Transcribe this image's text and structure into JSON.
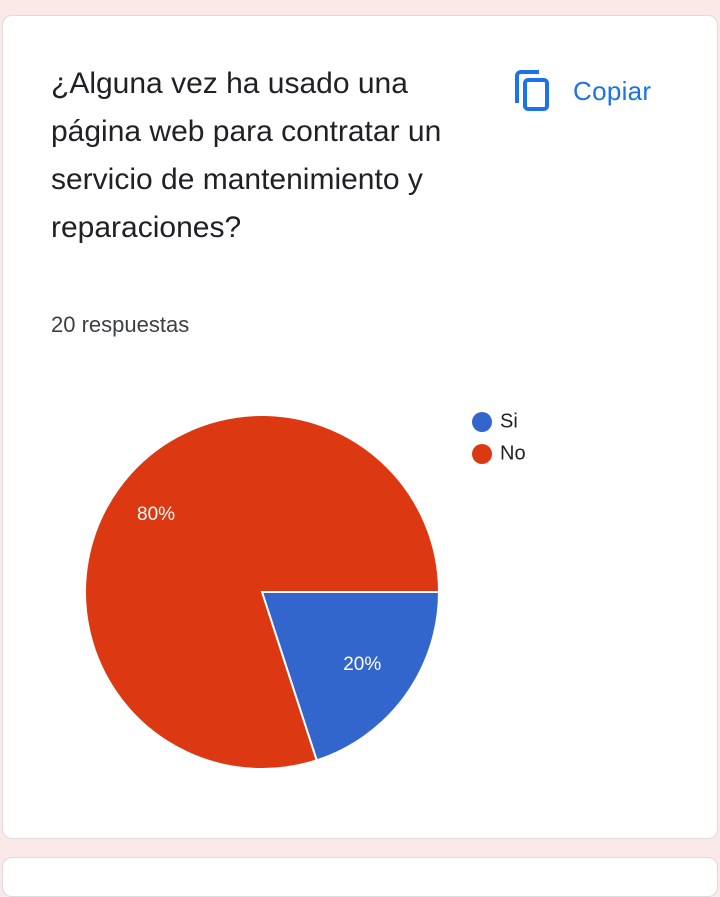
{
  "question": {
    "title": "¿Alguna vez ha usado una página web para contratar un servicio de mantenimiento y reparaciones?",
    "response_count": "20 respuestas",
    "copy_label": "Copiar"
  },
  "colors": {
    "accent": "#1a73e8",
    "si": "#3366cc",
    "no": "#dc3912",
    "background": "#fbe9e7"
  },
  "chart_data": {
    "type": "pie",
    "categories": [
      "Si",
      "No"
    ],
    "values": [
      20,
      80
    ],
    "labels": [
      "20%",
      "80%"
    ],
    "colors": [
      "#3366cc",
      "#dc3912"
    ],
    "legend_position": "right"
  }
}
